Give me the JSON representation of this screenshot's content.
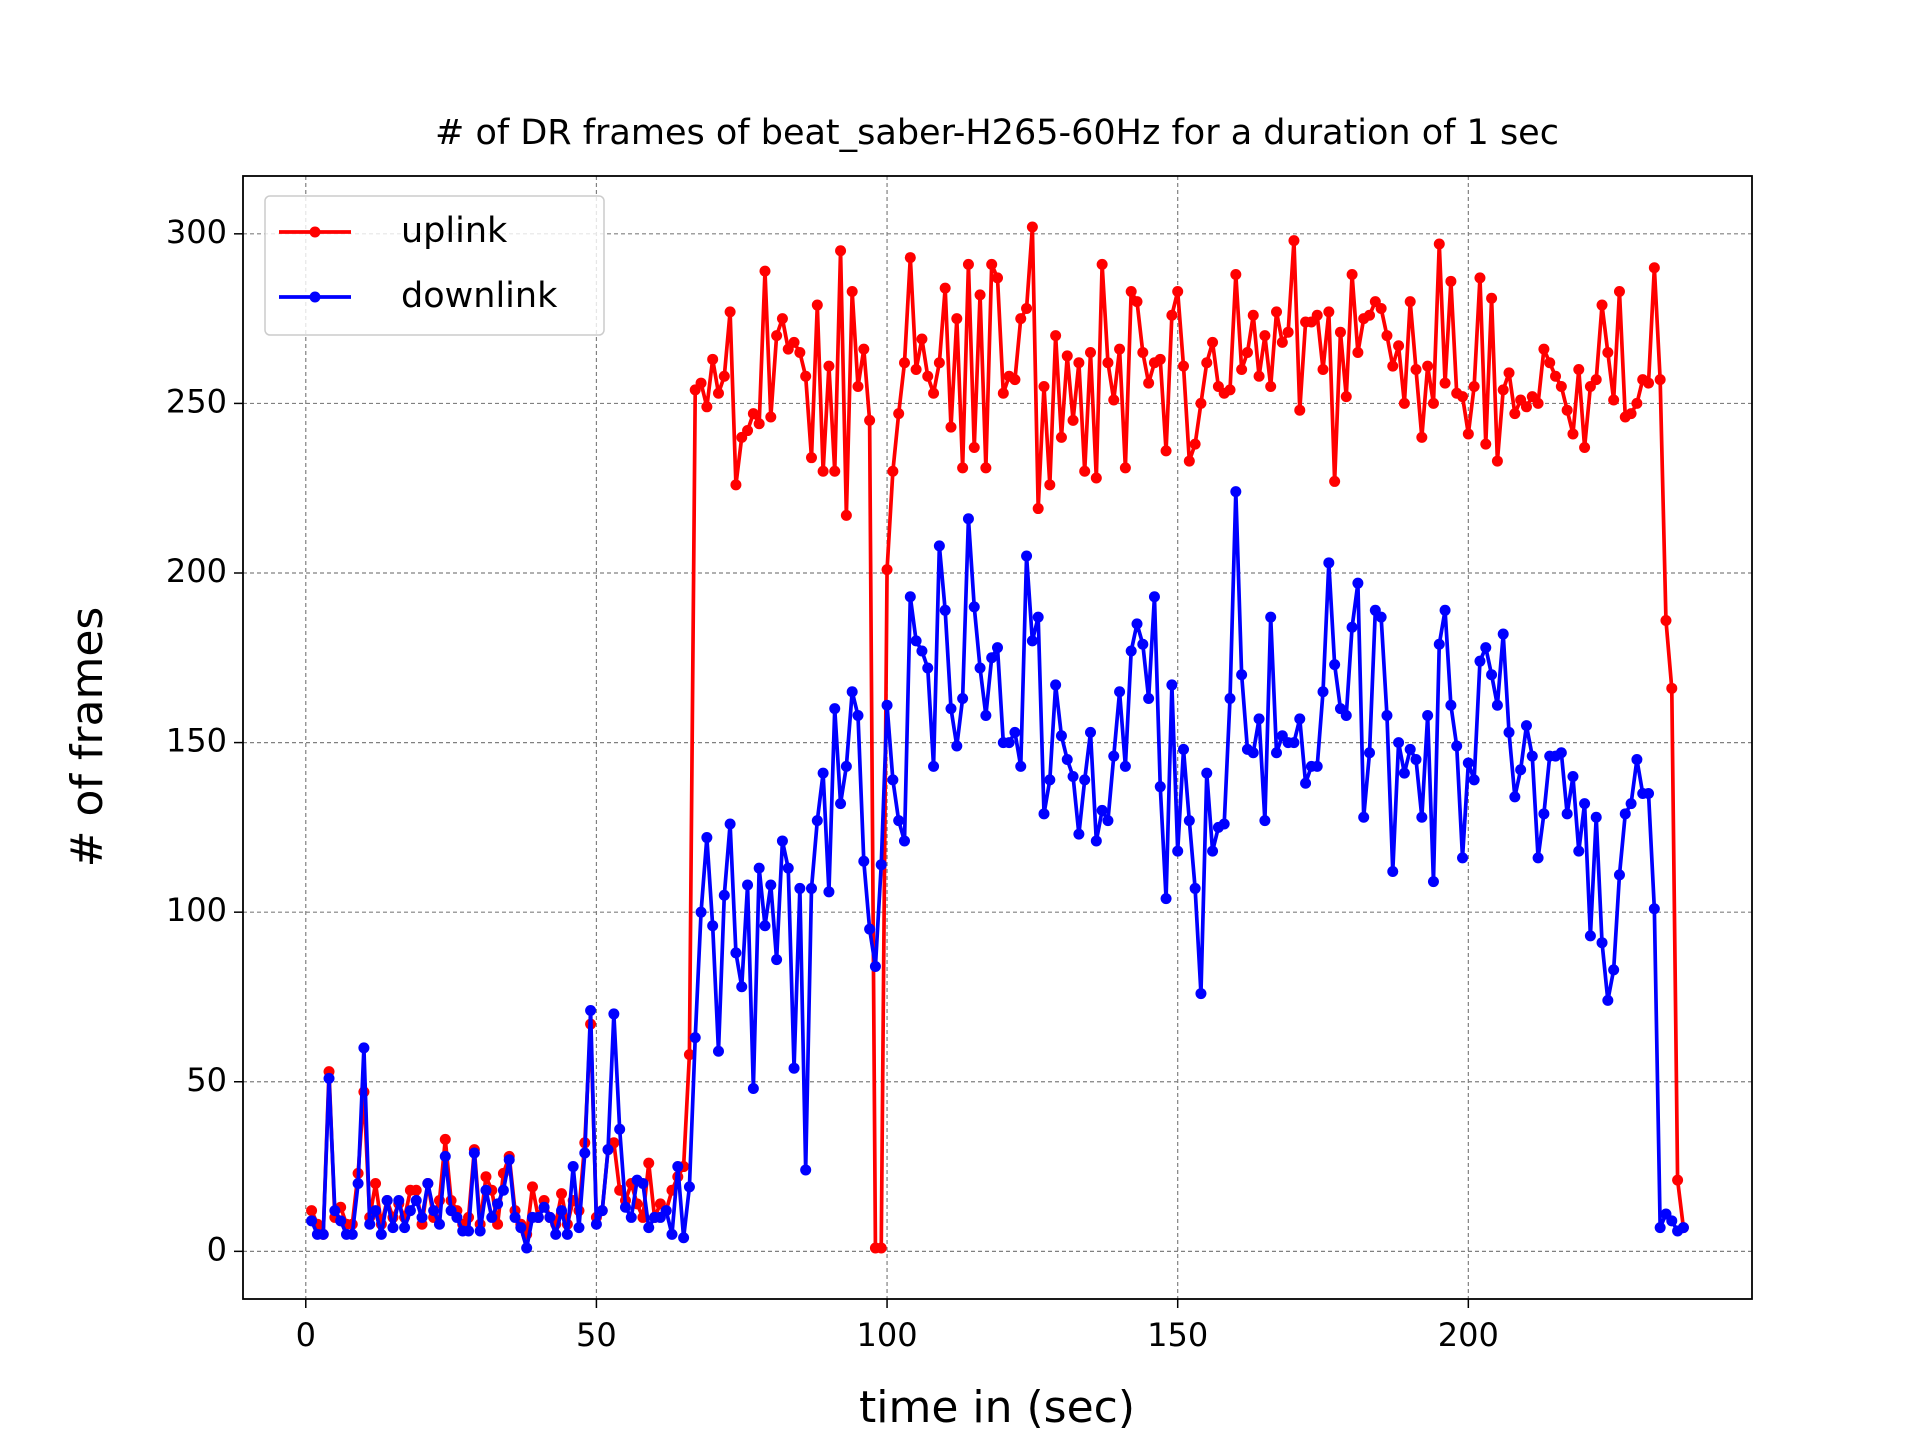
{
  "chart_data": {
    "type": "line",
    "title": "# of DR frames of beat_saber-H265-60Hz for a duration of 1 sec",
    "xlabel": "time in (sec)",
    "ylabel": "# of frames",
    "x": [
      1,
      2,
      3,
      4,
      5,
      6,
      7,
      8,
      9,
      10,
      11,
      12,
      13,
      14,
      15,
      16,
      17,
      18,
      19,
      20,
      21,
      22,
      23,
      24,
      25,
      26,
      27,
      28,
      29,
      30,
      31,
      32,
      33,
      34,
      35,
      36,
      37,
      38,
      39,
      40,
      41,
      42,
      43,
      44,
      45,
      46,
      47,
      48,
      49,
      50,
      51,
      52,
      53,
      54,
      55,
      56,
      57,
      58,
      59,
      60,
      61,
      62,
      63,
      64,
      65,
      66,
      67,
      68,
      69,
      70,
      71,
      72,
      73,
      74,
      75,
      76,
      77,
      78,
      79,
      80,
      81,
      82,
      83,
      84,
      85,
      86,
      87,
      88,
      89,
      90,
      91,
      92,
      93,
      94,
      95,
      96,
      97,
      98,
      99,
      100,
      101,
      102,
      103,
      104,
      105,
      106,
      107,
      108,
      109,
      110,
      111,
      112,
      113,
      114,
      115,
      116,
      117,
      118,
      119,
      120,
      121,
      122,
      123,
      124,
      125,
      126,
      127,
      128,
      129,
      130,
      131,
      132,
      133,
      134,
      135,
      136,
      137,
      138,
      139,
      140,
      141,
      142,
      143,
      144,
      145,
      146,
      147,
      148,
      149,
      150,
      151,
      152,
      153,
      154,
      155,
      156,
      157,
      158,
      159,
      160,
      161,
      162,
      163,
      164,
      165,
      166,
      167,
      168,
      169,
      170,
      171,
      172,
      173,
      174,
      175,
      176,
      177,
      178,
      179,
      180,
      181,
      182,
      183,
      184,
      185,
      186,
      187,
      188,
      189,
      190,
      191,
      192,
      193,
      194,
      195,
      196,
      197,
      198,
      199,
      200,
      201,
      202,
      203,
      204,
      205,
      206,
      207,
      208,
      209,
      210,
      211,
      212,
      213,
      214,
      215,
      216,
      217,
      218,
      219,
      220,
      221,
      222,
      223,
      224,
      225,
      226,
      227,
      228,
      229,
      230,
      231,
      232,
      233,
      234,
      235,
      236,
      237
    ],
    "series": [
      {
        "name": "uplink",
        "color": "#ff0000",
        "values": [
          12,
          8,
          5,
          53,
          10,
          13,
          8,
          8,
          23,
          47,
          10,
          20,
          8,
          15,
          10,
          14,
          10,
          18,
          18,
          8,
          20,
          10,
          15,
          33,
          15,
          12,
          8,
          10,
          30,
          8,
          22,
          18,
          8,
          23,
          28,
          12,
          8,
          5,
          19,
          10,
          15,
          10,
          8,
          17,
          8,
          15,
          12,
          32,
          67,
          10,
          12,
          30,
          32,
          18,
          15,
          20,
          14,
          10,
          26,
          10,
          14,
          12,
          18,
          22,
          25,
          58,
          254,
          256,
          249,
          263,
          253,
          258,
          277,
          226,
          240,
          242,
          247,
          244,
          289,
          246,
          270,
          275,
          266,
          268,
          265,
          258,
          234,
          279,
          230,
          261,
          230,
          295,
          217,
          283,
          255,
          266,
          245,
          1,
          1,
          201,
          230,
          247,
          262,
          293,
          260,
          269,
          258,
          253,
          262,
          284,
          243,
          275,
          231,
          291,
          237,
          282,
          231,
          291,
          287,
          253,
          258,
          257,
          275,
          278,
          302,
          219,
          255,
          226,
          270,
          240,
          264,
          245,
          262,
          230,
          265,
          228,
          291,
          262,
          251,
          266,
          231,
          283,
          280,
          265,
          256,
          262,
          263,
          236,
          276,
          283,
          261,
          233,
          238,
          250,
          262,
          268,
          255,
          253,
          254,
          288,
          260,
          265,
          276,
          258,
          270,
          255,
          277,
          268,
          271,
          298,
          248,
          274,
          274,
          276,
          260,
          277,
          227,
          271,
          252,
          288,
          265,
          275,
          276,
          280,
          278,
          270,
          261,
          267,
          250,
          280,
          260,
          240,
          261,
          250,
          297,
          256,
          286,
          253,
          252,
          241,
          255,
          287,
          238,
          281,
          233,
          254,
          259,
          247,
          251,
          249,
          252,
          250,
          266,
          262,
          258,
          255,
          248,
          241,
          260,
          237,
          255,
          257,
          279,
          265,
          251,
          283,
          246,
          247,
          250,
          257,
          256,
          290,
          257,
          186,
          166,
          21,
          7
        ]
      },
      {
        "name": "downlink",
        "color": "#0000ff",
        "values": [
          9,
          5,
          5,
          51,
          12,
          9,
          5,
          5,
          20,
          60,
          8,
          12,
          5,
          15,
          7,
          15,
          7,
          12,
          15,
          10,
          20,
          12,
          8,
          28,
          12,
          10,
          6,
          6,
          29,
          6,
          18,
          10,
          14,
          18,
          27,
          10,
          7,
          1,
          10,
          10,
          13,
          10,
          5,
          12,
          5,
          25,
          7,
          29,
          71,
          8,
          12,
          30,
          70,
          36,
          13,
          10,
          21,
          20,
          7,
          10,
          10,
          12,
          5,
          25,
          4,
          19,
          63,
          100,
          122,
          96,
          59,
          105,
          126,
          88,
          78,
          108,
          48,
          113,
          96,
          108,
          86,
          121,
          113,
          54,
          107,
          24,
          107,
          127,
          141,
          106,
          160,
          132,
          143,
          165,
          158,
          115,
          95,
          84,
          114,
          161,
          139,
          127,
          121,
          193,
          180,
          177,
          172,
          143,
          208,
          189,
          160,
          149,
          163,
          216,
          190,
          172,
          158,
          175,
          178,
          150,
          150,
          153,
          143,
          205,
          180,
          187,
          129,
          139,
          167,
          152,
          145,
          140,
          123,
          139,
          153,
          121,
          130,
          127,
          146,
          165,
          143,
          177,
          185,
          179,
          163,
          193,
          137,
          104,
          167,
          118,
          148,
          127,
          107,
          76,
          141,
          118,
          125,
          126,
          163,
          224,
          170,
          148,
          147,
          157,
          127,
          187,
          147,
          152,
          150,
          150,
          157,
          138,
          143,
          143,
          165,
          203,
          173,
          160,
          158,
          184,
          197,
          128,
          147,
          189,
          187,
          158,
          112,
          150,
          141,
          148,
          145,
          128,
          158,
          109,
          179,
          189,
          161,
          149,
          116,
          144,
          139,
          174,
          178,
          170,
          161,
          182,
          153,
          134,
          142,
          155,
          146,
          116,
          129,
          146,
          146,
          147,
          129,
          140,
          118,
          132,
          93,
          128,
          91,
          74,
          83,
          111,
          129,
          132,
          145,
          135,
          135,
          101,
          7,
          11,
          9,
          6,
          7
        ]
      }
    ],
    "xlim": [
      -10.8,
      248.8
    ],
    "ylim": [
      -14.05,
      317.05
    ],
    "xticks": [
      0,
      50,
      100,
      150,
      200
    ],
    "yticks": [
      0,
      50,
      100,
      150,
      200,
      250,
      300
    ],
    "grid": true,
    "legend": "upper left"
  }
}
